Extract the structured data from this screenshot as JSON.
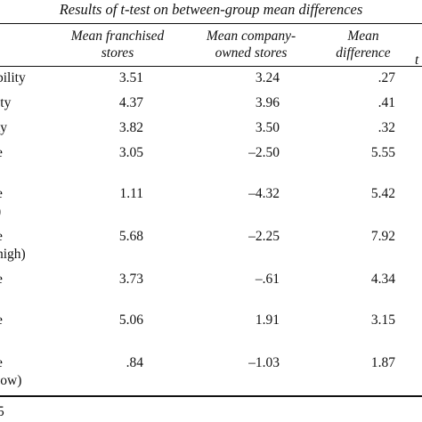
{
  "caption": "Results of t-test on between-group mean differences",
  "headers": {
    "col1": [
      "Mean franchised",
      "stores"
    ],
    "col2": [
      "Mean company-",
      "owned stores"
    ],
    "col3": [
      "Mean",
      "difference"
    ]
  },
  "rows": [
    {
      "label": "bility",
      "sub": "",
      "franchised": "3.51",
      "company": "3.24",
      "diff": ".27"
    },
    {
      "label": "ity",
      "sub": "",
      "franchised": "4.37",
      "company": "3.96",
      "diff": ".41"
    },
    {
      "label": "ty",
      "sub": "",
      "franchised": "3.82",
      "company": "3.50",
      "diff": ".32"
    },
    {
      "label": "e",
      "sub": "",
      "franchised": "3.05",
      "company": "–2.50",
      "diff": "5.55"
    },
    {
      "label": "e",
      "sub": ")",
      "franchised": "1.11",
      "company": "–4.32",
      "diff": "5.42"
    },
    {
      "label": "e",
      "sub": "high)",
      "franchised": "5.68",
      "company": "–2.25",
      "diff": "7.92"
    },
    {
      "label": "e",
      "sub": "",
      "franchised": "3.73",
      "company": "–.61",
      "diff": "4.34"
    },
    {
      "label": "e",
      "sub": "",
      "franchised": "5.06",
      "company": "1.91",
      "diff": "3.15"
    },
    {
      "label": "e",
      "sub": "low)",
      "franchised": ".84",
      "company": "–1.03",
      "diff": "1.87"
    }
  ],
  "footnote_fragment": "5"
}
